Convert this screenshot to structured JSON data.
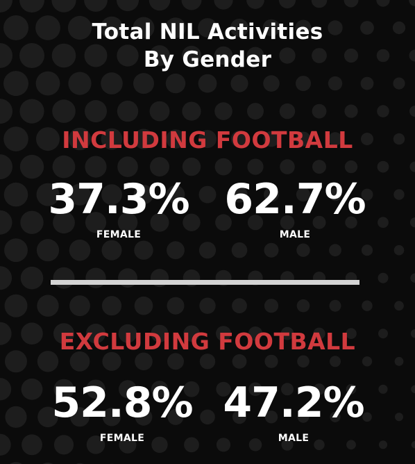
{
  "title": {
    "line1": "Total NIL Activities",
    "line2": "By Gender"
  },
  "sections": [
    {
      "heading": "INCLUDING FOOTBALL",
      "stats": [
        {
          "value": "37.3%",
          "label": "FEMALE"
        },
        {
          "value": "62.7%",
          "label": "MALE"
        }
      ]
    },
    {
      "heading": "EXCLUDING FOOTBALL",
      "stats": [
        {
          "value": "52.8%",
          "label": "FEMALE"
        },
        {
          "value": "47.2%",
          "label": "MALE"
        }
      ]
    }
  ],
  "colors": {
    "background": "#0b0b0b",
    "accent": "#d13a3e",
    "text": "#ffffff",
    "divider": "#d4d4d4"
  }
}
